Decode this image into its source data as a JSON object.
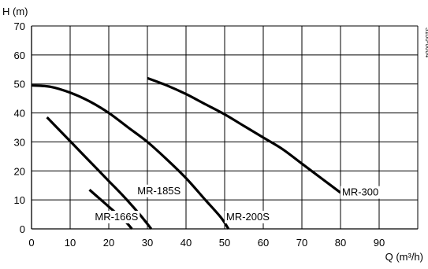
{
  "chart_data": {
    "type": "line",
    "title": "",
    "xlabel": "Q (m³/h)",
    "ylabel": "H (m)",
    "xlim": [
      0,
      100
    ],
    "ylim": [
      0,
      70
    ],
    "x_ticks": [
      0,
      10,
      20,
      30,
      40,
      50,
      60,
      70,
      80,
      90
    ],
    "y_ticks": [
      0,
      10,
      20,
      30,
      40,
      50,
      60,
      70
    ],
    "grid": true,
    "legend": "none",
    "code": "3100-0004",
    "series": [
      {
        "name": "MR-166S",
        "points": [
          [
            15,
            13.5
          ],
          [
            18,
            10
          ],
          [
            21,
            6.5
          ],
          [
            24,
            3
          ],
          [
            26,
            0
          ]
        ]
      },
      {
        "name": "MR-185S",
        "points": [
          [
            4,
            38.5
          ],
          [
            8,
            33
          ],
          [
            12,
            27.5
          ],
          [
            16,
            22
          ],
          [
            20,
            16.5
          ],
          [
            24,
            11
          ],
          [
            28,
            5
          ],
          [
            31,
            0
          ]
        ]
      },
      {
        "name": "MR-200S",
        "points": [
          [
            0,
            49.5
          ],
          [
            5,
            49
          ],
          [
            10,
            47
          ],
          [
            15,
            44
          ],
          [
            20,
            40
          ],
          [
            25,
            35
          ],
          [
            30,
            30
          ],
          [
            35,
            24
          ],
          [
            40,
            17.5
          ],
          [
            45,
            10
          ],
          [
            49,
            4
          ],
          [
            51,
            0
          ]
        ]
      },
      {
        "name": "MR-300",
        "points": [
          [
            30,
            52
          ],
          [
            35,
            49.5
          ],
          [
            40,
            46.5
          ],
          [
            45,
            43
          ],
          [
            50,
            39.5
          ],
          [
            55,
            35.5
          ],
          [
            60,
            31.5
          ],
          [
            65,
            27.5
          ],
          [
            70,
            22.5
          ],
          [
            75,
            17.5
          ],
          [
            80,
            12.5
          ]
        ]
      }
    ],
    "series_labels": [
      {
        "name": "MR-166S",
        "at": [
          16,
          3
        ]
      },
      {
        "name": "MR-185S",
        "at": [
          27,
          12
        ]
      },
      {
        "name": "MR-200S",
        "at": [
          50,
          3
        ]
      },
      {
        "name": "MR-300",
        "at": [
          80,
          11.5
        ]
      }
    ],
    "colors": {
      "line": "#000000",
      "grid": "#000000",
      "background": "#ffffff"
    }
  }
}
